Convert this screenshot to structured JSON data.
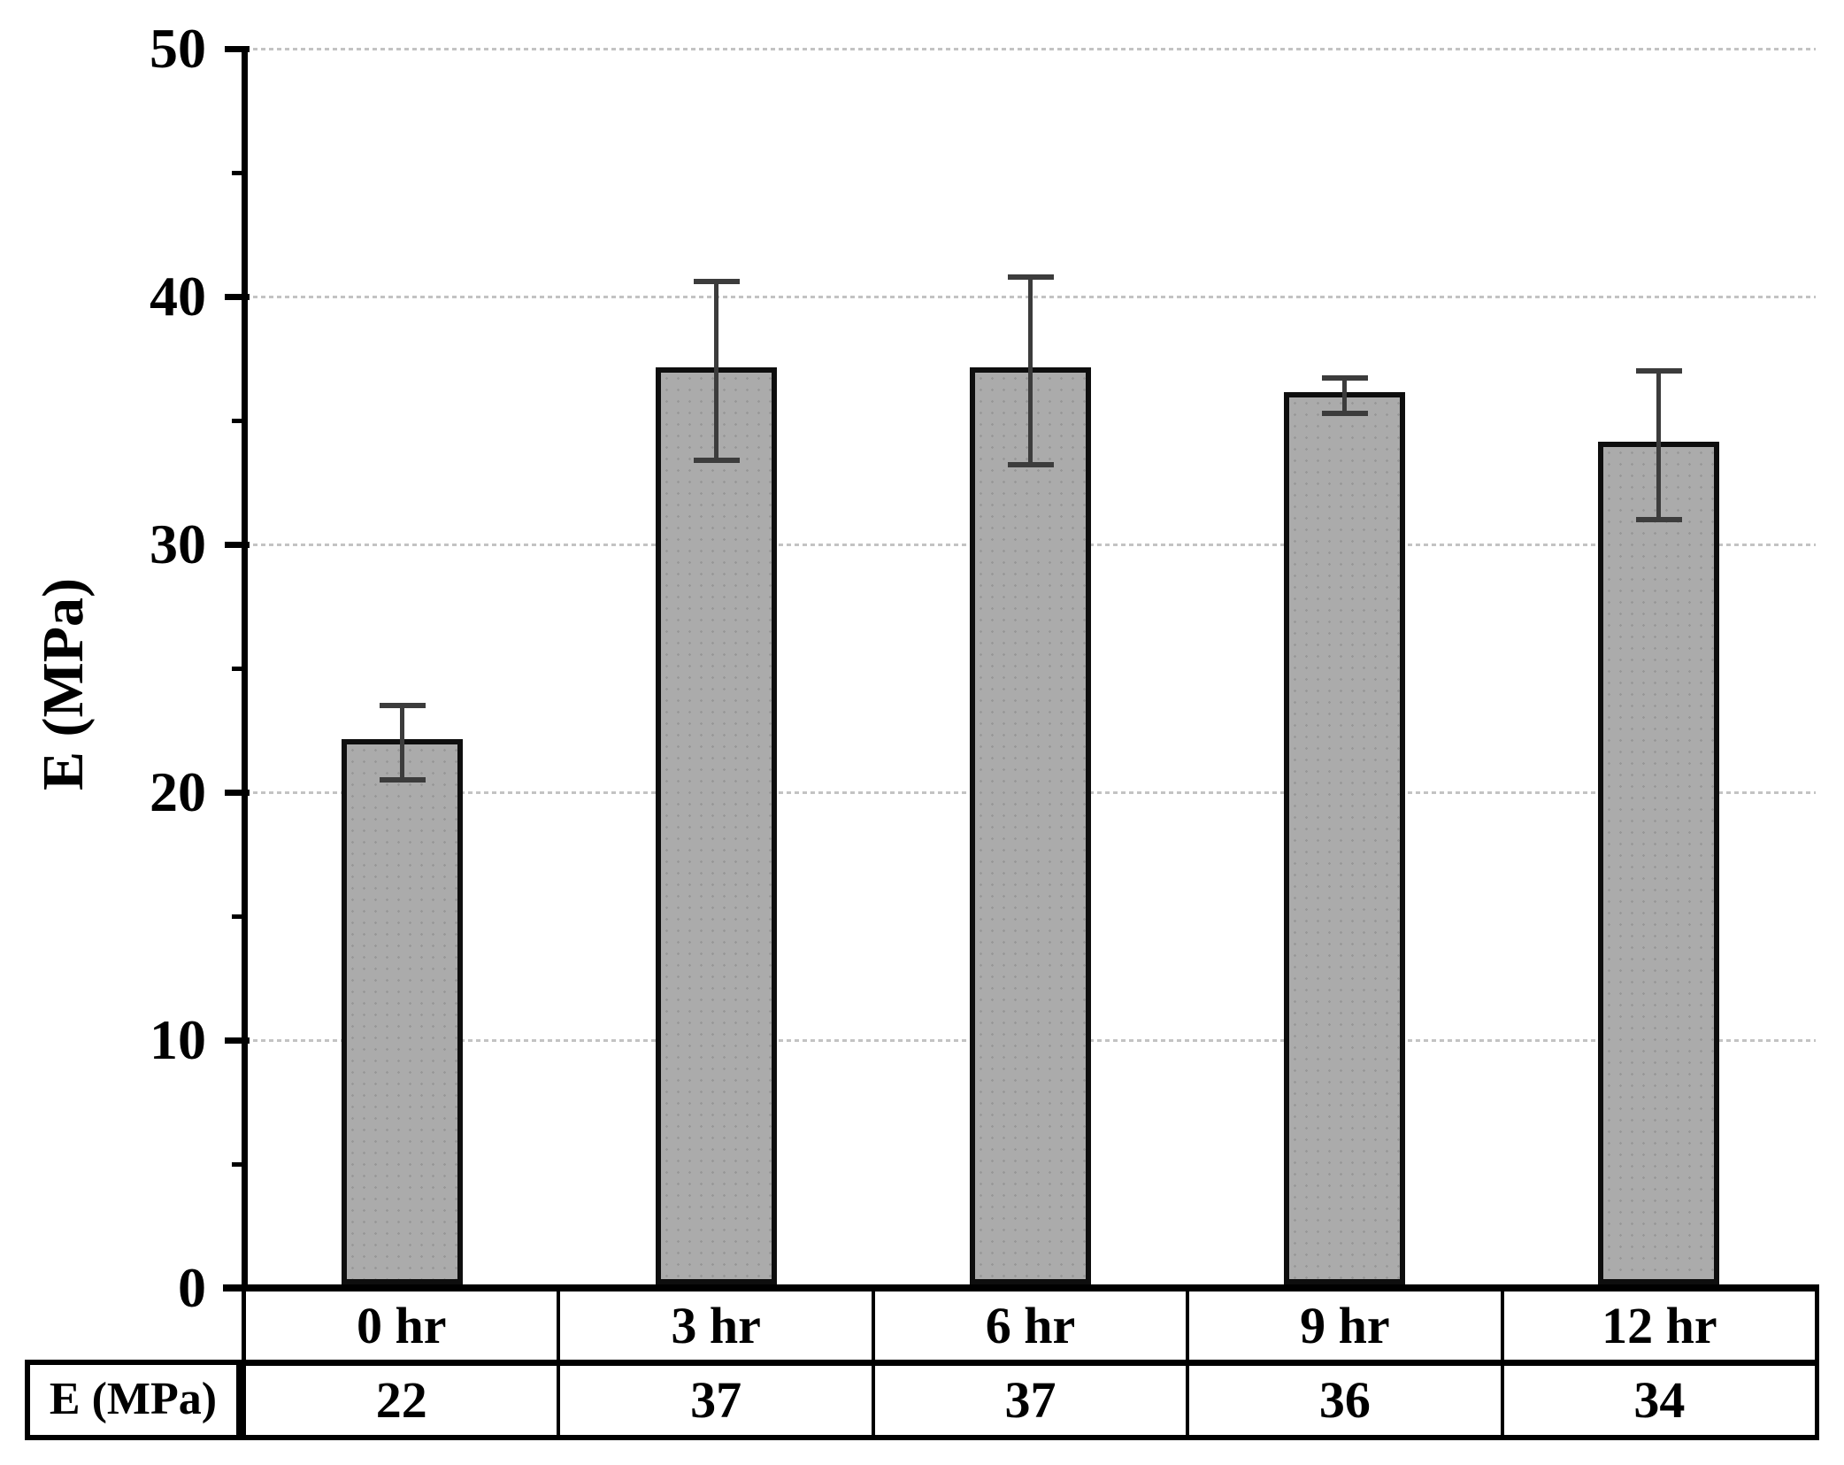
{
  "chart_data": {
    "type": "bar",
    "title": "",
    "ylabel": "E (MPa)",
    "xlabel": "",
    "categories": [
      "0 hr",
      "3 hr",
      "6 hr",
      "9 hr",
      "12 hr"
    ],
    "values": [
      22,
      37,
      37,
      36,
      34
    ],
    "error_bars": [
      1.5,
      3.6,
      3.8,
      0.7,
      3.0
    ],
    "ylim": [
      0,
      50
    ],
    "y_major_ticks": [
      0,
      10,
      20,
      30,
      40,
      50
    ],
    "y_minor_ticks": [
      5,
      15,
      25,
      35,
      45
    ],
    "grid": "horizontal dotted major gridlines",
    "legend_position": "none",
    "data_table": {
      "row_label": "E (MPa)",
      "row_values": [
        22,
        37,
        37,
        36,
        34
      ]
    },
    "bar_fill_color": "#ababab",
    "bar_border_color": "#0e0e0e",
    "error_bar_color": "#3c3c3c",
    "gridline_color": "#c3c3c3",
    "axis_color": "#000000"
  }
}
